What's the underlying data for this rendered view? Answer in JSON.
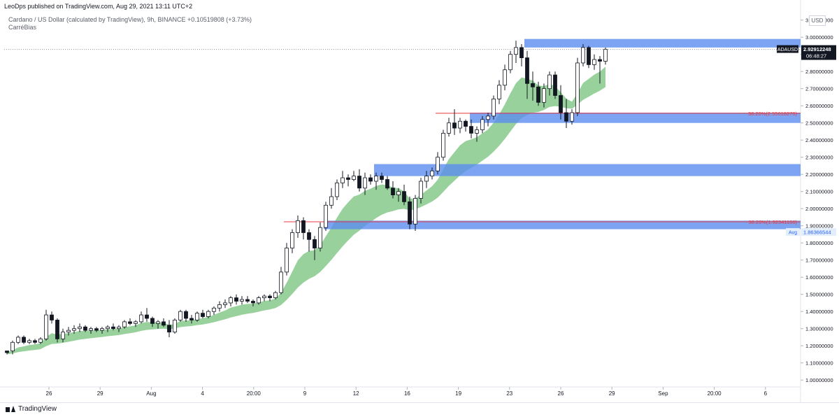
{
  "header": {
    "published": "LeoDps published on TradingView.com, Aug 29, 2021 13:11 UTC+2",
    "series_title": "Cardano / US Dollar (calculated by TradingView), 9h, BINANCE",
    "change": "+0.10519808 (+3.73%)",
    "indicator": "CarréBias"
  },
  "price_axis": {
    "currency": "USD",
    "ticks": [
      "3.10000000",
      "3.00000000",
      "2.90000000",
      "2.80000000",
      "2.70000000",
      "2.60000000",
      "2.50000000",
      "2.40000000",
      "2.30000000",
      "2.20000000",
      "2.10000000",
      "2.00000000",
      "1.90000000",
      "1.80000000",
      "1.70000000",
      "1.60000000",
      "1.50000000",
      "1.40000000",
      "1.30000000",
      "1.20000000",
      "1.10000000",
      "1.00000000"
    ]
  },
  "time_axis": {
    "ticks": [
      "26",
      "29",
      "Aug",
      "4",
      "20:00",
      "9",
      "12",
      "16",
      "19",
      "23",
      "26",
      "29",
      "Sep",
      "20:00",
      "6"
    ]
  },
  "labels": {
    "symbol": "ADAUSD",
    "last_price": "2.92912248",
    "countdown": "06:48:27",
    "avg_label": "Avg",
    "avg_price": "1.86366544",
    "fib_upper": "38.20%(2.55618270)",
    "fib_lower": "38.20%(1.92341166)"
  },
  "footer": {
    "brand": "TradingView"
  },
  "colors": {
    "zone": "#5b8def",
    "band": "#86c98a",
    "fib_line": "#e8393f",
    "candle_up": "#ffffff",
    "candle_down": "#131722"
  },
  "chart_data": {
    "type": "candlestick",
    "symbol": "ADAUSD",
    "interval": "9h",
    "ylim": [
      0.96,
      3.16
    ],
    "candles": [
      [
        1.17,
        1.17,
        1.15,
        1.16
      ],
      [
        1.17,
        1.23,
        1.15,
        1.22
      ],
      [
        1.22,
        1.26,
        1.21,
        1.25
      ],
      [
        1.25,
        1.26,
        1.21,
        1.22
      ],
      [
        1.22,
        1.24,
        1.21,
        1.23
      ],
      [
        1.23,
        1.24,
        1.21,
        1.22
      ],
      [
        1.22,
        1.25,
        1.21,
        1.24
      ],
      [
        1.24,
        1.41,
        1.23,
        1.38
      ],
      [
        1.38,
        1.4,
        1.33,
        1.35
      ],
      [
        1.35,
        1.36,
        1.22,
        1.24
      ],
      [
        1.24,
        1.3,
        1.22,
        1.28
      ],
      [
        1.28,
        1.31,
        1.26,
        1.29
      ],
      [
        1.29,
        1.32,
        1.27,
        1.3
      ],
      [
        1.3,
        1.33,
        1.28,
        1.31
      ],
      [
        1.31,
        1.32,
        1.28,
        1.29
      ],
      [
        1.29,
        1.31,
        1.27,
        1.3
      ],
      [
        1.3,
        1.31,
        1.28,
        1.29
      ],
      [
        1.29,
        1.31,
        1.27,
        1.3
      ],
      [
        1.3,
        1.32,
        1.28,
        1.31
      ],
      [
        1.31,
        1.33,
        1.29,
        1.3
      ],
      [
        1.3,
        1.32,
        1.28,
        1.31
      ],
      [
        1.31,
        1.35,
        1.3,
        1.34
      ],
      [
        1.34,
        1.36,
        1.32,
        1.33
      ],
      [
        1.33,
        1.35,
        1.31,
        1.34
      ],
      [
        1.34,
        1.4,
        1.33,
        1.38
      ],
      [
        1.38,
        1.42,
        1.34,
        1.36
      ],
      [
        1.36,
        1.37,
        1.31,
        1.33
      ],
      [
        1.33,
        1.35,
        1.3,
        1.34
      ],
      [
        1.34,
        1.36,
        1.31,
        1.32
      ],
      [
        1.32,
        1.35,
        1.25,
        1.28
      ],
      [
        1.28,
        1.36,
        1.27,
        1.35
      ],
      [
        1.35,
        1.41,
        1.34,
        1.4
      ],
      [
        1.4,
        1.41,
        1.34,
        1.36
      ],
      [
        1.36,
        1.38,
        1.33,
        1.35
      ],
      [
        1.35,
        1.4,
        1.34,
        1.39
      ],
      [
        1.39,
        1.41,
        1.36,
        1.37
      ],
      [
        1.37,
        1.41,
        1.36,
        1.4
      ],
      [
        1.4,
        1.43,
        1.38,
        1.42
      ],
      [
        1.42,
        1.46,
        1.4,
        1.44
      ],
      [
        1.44,
        1.47,
        1.42,
        1.45
      ],
      [
        1.45,
        1.49,
        1.43,
        1.48
      ],
      [
        1.48,
        1.5,
        1.44,
        1.46
      ],
      [
        1.46,
        1.49,
        1.44,
        1.47
      ],
      [
        1.47,
        1.49,
        1.45,
        1.46
      ],
      [
        1.46,
        1.47,
        1.43,
        1.45
      ],
      [
        1.45,
        1.49,
        1.44,
        1.48
      ],
      [
        1.48,
        1.5,
        1.46,
        1.49
      ],
      [
        1.49,
        1.5,
        1.46,
        1.48
      ],
      [
        1.48,
        1.52,
        1.47,
        1.51
      ],
      [
        1.51,
        1.66,
        1.5,
        1.63
      ],
      [
        1.63,
        1.8,
        1.61,
        1.77
      ],
      [
        1.77,
        1.88,
        1.74,
        1.86
      ],
      [
        1.86,
        1.96,
        1.83,
        1.93
      ],
      [
        1.93,
        1.95,
        1.82,
        1.86
      ],
      [
        1.86,
        1.88,
        1.75,
        1.82
      ],
      [
        1.82,
        1.84,
        1.7,
        1.77
      ],
      [
        1.77,
        1.92,
        1.75,
        1.89
      ],
      [
        1.89,
        2.04,
        1.87,
        2.02
      ],
      [
        2.02,
        2.12,
        2.0,
        2.07
      ],
      [
        2.07,
        2.17,
        2.05,
        2.15
      ],
      [
        2.15,
        2.22,
        2.12,
        2.18
      ],
      [
        2.18,
        2.2,
        2.13,
        2.17
      ],
      [
        2.17,
        2.22,
        2.16,
        2.19
      ],
      [
        2.19,
        2.23,
        2.1,
        2.12
      ],
      [
        2.12,
        2.21,
        2.08,
        2.18
      ],
      [
        2.18,
        2.2,
        2.14,
        2.16
      ],
      [
        2.16,
        2.21,
        2.11,
        2.19
      ],
      [
        2.19,
        2.21,
        2.15,
        2.17
      ],
      [
        2.17,
        2.19,
        2.11,
        2.12
      ],
      [
        2.12,
        2.16,
        2.06,
        2.08
      ],
      [
        2.08,
        2.12,
        2.04,
        2.1
      ],
      [
        2.1,
        2.14,
        2.02,
        2.04
      ],
      [
        2.04,
        2.07,
        1.88,
        1.91
      ],
      [
        1.91,
        2.08,
        1.87,
        2.06
      ],
      [
        2.06,
        2.18,
        2.03,
        2.16
      ],
      [
        2.16,
        2.22,
        2.12,
        2.19
      ],
      [
        2.19,
        2.24,
        2.17,
        2.22
      ],
      [
        2.22,
        2.33,
        2.2,
        2.3
      ],
      [
        2.3,
        2.46,
        2.28,
        2.44
      ],
      [
        2.44,
        2.53,
        2.42,
        2.5
      ],
      [
        2.5,
        2.58,
        2.43,
        2.47
      ],
      [
        2.47,
        2.53,
        2.44,
        2.51
      ],
      [
        2.51,
        2.52,
        2.45,
        2.48
      ],
      [
        2.48,
        2.52,
        2.41,
        2.44
      ],
      [
        2.44,
        2.48,
        2.39,
        2.46
      ],
      [
        2.46,
        2.54,
        2.44,
        2.52
      ],
      [
        2.52,
        2.56,
        2.48,
        2.54
      ],
      [
        2.54,
        2.66,
        2.52,
        2.64
      ],
      [
        2.64,
        2.75,
        2.61,
        2.72
      ],
      [
        2.72,
        2.84,
        2.69,
        2.81
      ],
      [
        2.81,
        2.92,
        2.79,
        2.9
      ],
      [
        2.9,
        2.98,
        2.85,
        2.94
      ],
      [
        2.94,
        2.96,
        2.83,
        2.88
      ],
      [
        2.88,
        2.92,
        2.64,
        2.73
      ],
      [
        2.73,
        2.8,
        2.63,
        2.71
      ],
      [
        2.71,
        2.74,
        2.6,
        2.62
      ],
      [
        2.62,
        2.73,
        2.59,
        2.7
      ],
      [
        2.7,
        2.8,
        2.66,
        2.78
      ],
      [
        2.78,
        2.8,
        2.64,
        2.66
      ],
      [
        2.66,
        2.72,
        2.52,
        2.56
      ],
      [
        2.56,
        2.64,
        2.47,
        2.51
      ],
      [
        2.51,
        2.58,
        2.49,
        2.56
      ],
      [
        2.56,
        2.88,
        2.54,
        2.85
      ],
      [
        2.85,
        2.96,
        2.83,
        2.94
      ],
      [
        2.94,
        2.95,
        2.82,
        2.84
      ],
      [
        2.84,
        2.9,
        2.81,
        2.87
      ],
      [
        2.87,
        2.89,
        2.73,
        2.86
      ],
      [
        2.86,
        2.94,
        2.84,
        2.93
      ]
    ],
    "zones": [
      {
        "top": 2.99,
        "bottom": 2.94
      },
      {
        "top": 2.56,
        "bottom": 2.5
      },
      {
        "top": 2.26,
        "bottom": 2.19
      },
      {
        "top": 1.93,
        "bottom": 1.88
      }
    ],
    "fib_levels": [
      {
        "label": "38.20%(2.55618270)",
        "value": 2.5561827
      },
      {
        "label": "38.20%(1.92341166)",
        "value": 1.92341166
      }
    ],
    "last_price": 2.92912248,
    "avg_price": 1.86366544
  }
}
